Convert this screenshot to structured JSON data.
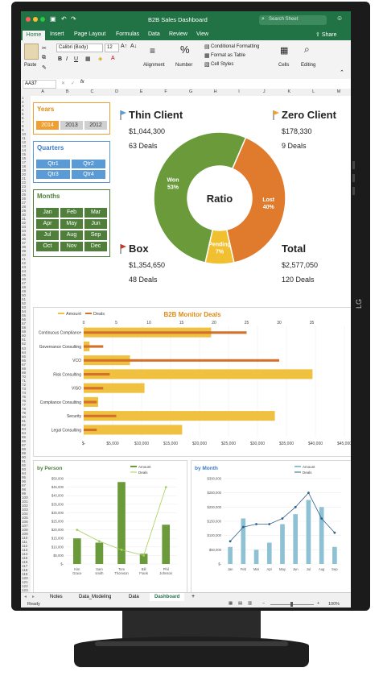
{
  "brand": {
    "logo": "LG"
  },
  "excel": {
    "title": "B2B Sales Dashboard",
    "search_placeholder": "Search Sheet",
    "share_label": "Share",
    "tabs": [
      "Home",
      "Insert",
      "Page Layout",
      "Formulas",
      "Data",
      "Review",
      "View"
    ],
    "ribbon": {
      "paste": "Paste",
      "font_name": "Calibri (Body)",
      "font_size": "12",
      "alignment": "Alignment",
      "number": "Number",
      "conditional_formatting": "Conditional Formatting",
      "format_as_table": "Format as Table",
      "cell_styles": "Cell Styles",
      "cells": "Cells",
      "editing": "Editing"
    },
    "name_box": "AA37",
    "fx": "fx",
    "columns": [
      "A",
      "B",
      "C",
      "D",
      "E",
      "F",
      "G",
      "H",
      "I",
      "J",
      "K",
      "L",
      "M"
    ],
    "rows": [
      "1",
      "2",
      "3",
      "4",
      "5",
      "6",
      "7",
      "8",
      "9",
      "10",
      "11",
      "12",
      "13",
      "14",
      "15",
      "16",
      "17",
      "18",
      "19",
      "20",
      "21",
      "22",
      "23",
      "24",
      "25",
      "26",
      "27",
      "28",
      "29",
      "30",
      "31",
      "32",
      "33",
      "34",
      "35",
      "36",
      "37",
      "38",
      "39",
      "40",
      "41",
      "42",
      "43",
      "44",
      "45",
      "46",
      "47",
      "48",
      "49",
      "50",
      "51",
      "52",
      "53",
      "54",
      "55",
      "56",
      "57",
      "58",
      "59",
      "60",
      "61",
      "62",
      "63",
      "64",
      "65",
      "66",
      "67",
      "68",
      "69",
      "70",
      "71",
      "72",
      "73",
      "74",
      "75",
      "76",
      "77",
      "78",
      "79",
      "80",
      "81",
      "82",
      "83",
      "84",
      "85",
      "86",
      "87",
      "88",
      "89",
      "90",
      "91",
      "92",
      "93",
      "94",
      "95",
      "96",
      "97",
      "98",
      "99",
      "100",
      "101",
      "102",
      "103",
      "104",
      "105",
      "106",
      "107",
      "108",
      "109",
      "110",
      "111",
      "112",
      "113",
      "114",
      "115",
      "116",
      "117",
      "118",
      "119",
      "120",
      "121",
      "122",
      "123"
    ],
    "sheet_tabs": [
      "Notes",
      "Data_Modeling",
      "Data",
      "Dashboard"
    ],
    "active_sheet": "Dashboard",
    "add_sheet": "+",
    "status": "Ready",
    "zoom": "100%"
  },
  "slicers": {
    "years": {
      "title": "Years",
      "items": [
        "2014",
        "2013",
        "2012"
      ],
      "selected": "2014"
    },
    "quarters": {
      "title": "Quarters",
      "items": [
        "Qtr1",
        "Qtr2",
        "Qtr3",
        "Qtr4"
      ]
    },
    "months": {
      "title": "Months",
      "items": [
        "Jan",
        "Feb",
        "Mar",
        "Apr",
        "May",
        "Jun",
        "Jul",
        "Aug",
        "Sep",
        "Oct",
        "Nov",
        "Dec"
      ]
    }
  },
  "kpis": {
    "thin_client": {
      "title": "Thin Client",
      "amount": "$1,044,300",
      "deals": "63 Deals"
    },
    "zero_client": {
      "title": "Zero Client",
      "amount": "$178,330",
      "deals": "9 Deals"
    },
    "box": {
      "title": "Box",
      "amount": "$1,354,650",
      "deals": "48 Deals"
    },
    "total": {
      "title": "Total",
      "amount": "$2,577,050",
      "deals": "120 Deals"
    }
  },
  "colors": {
    "excel_green": "#217346",
    "won": "#6a9a3a",
    "lost": "#e07b2e",
    "pending": "#f0c030",
    "slicer_orange": "#f0a030",
    "slicer_blue": "#5b9bd5",
    "slicer_green": "#4f7f3a",
    "amount_bar": "#f0c040",
    "deals_bar": "#d3702a"
  },
  "chart_data": [
    {
      "type": "pie",
      "title": "Ratio",
      "categories": [
        "Won",
        "Lost",
        "Pending"
      ],
      "labels": [
        "Won\n53%",
        "Lost\n40%",
        "Pending\n7%"
      ],
      "values": [
        53,
        40,
        7
      ]
    },
    {
      "type": "bar",
      "title": "B2B Monitor Deals",
      "orientation": "horizontal",
      "categories": [
        "Continuous Compliance",
        "Governance Consulting",
        "VCO",
        "Risk Consulting",
        "VISO",
        "Compliance Consulting",
        "Security",
        "Legal Consulting"
      ],
      "series": [
        {
          "name": "Amount",
          "values": [
            22000,
            1000,
            8000,
            39500,
            10500,
            2500,
            33000,
            17000
          ]
        },
        {
          "name": "Deals",
          "values": [
            25,
            3,
            30,
            4,
            3,
            2,
            5,
            2
          ]
        }
      ],
      "top_ticks": [
        "0",
        "5",
        "10",
        "15",
        "20",
        "25",
        "30",
        "35"
      ],
      "bottom_ticks": [
        "$-",
        "$5,000",
        "$10,000",
        "$15,000",
        "$20,000",
        "$25,000",
        "$30,000",
        "$35,000",
        "$40,000",
        "$45,000"
      ],
      "xlim_amount": [
        0,
        45000
      ],
      "xlim_deals": [
        0,
        35
      ],
      "legend": "top-left"
    },
    {
      "type": "bar",
      "title": "by Person",
      "categories": [
        "Kim Grace",
        "Sam smith",
        "Tom Thomson",
        "Bill Frank",
        "Phil Johnson"
      ],
      "series": [
        {
          "name": "Amount",
          "values": [
            15000,
            12500,
            48000,
            6000,
            23000
          ]
        },
        {
          "name": "Deals",
          "values": [
            12,
            8,
            5,
            3,
            27
          ]
        }
      ],
      "yticks": [
        "$50,000",
        "$45,000",
        "$40,000",
        "$35,000",
        "$30,000",
        "$25,000",
        "$20,000",
        "$15,000",
        "$10,000",
        "$5,000",
        "$-"
      ],
      "ylim": [
        0,
        50000
      ],
      "deals_ylim": [
        0,
        30
      ],
      "legend": "top-right"
    },
    {
      "type": "bar",
      "title": "by Month",
      "categories": [
        "Jan",
        "Feb",
        "Mar",
        "Apr",
        "May",
        "Jun",
        "Jul",
        "Aug",
        "Sep"
      ],
      "series": [
        {
          "name": "Amount",
          "values": [
            60000,
            160000,
            50000,
            75000,
            140000,
            175000,
            225000,
            200000,
            60000
          ]
        },
        {
          "name": "Deals",
          "values": [
            8,
            13,
            14,
            14,
            16,
            20,
            25,
            16,
            11
          ]
        }
      ],
      "yticks": [
        "$300,000",
        "$250,000",
        "$200,000",
        "$150,000",
        "$100,000",
        "$50,000",
        "$-"
      ],
      "ylim": [
        0,
        300000
      ],
      "deals_ylim": [
        0,
        30
      ],
      "legend": "top-right"
    }
  ]
}
